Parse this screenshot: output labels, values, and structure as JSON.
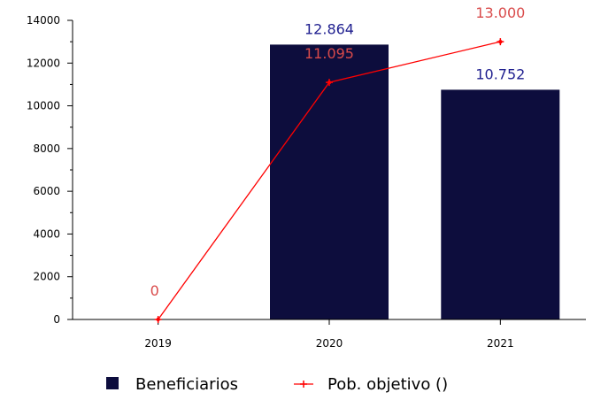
{
  "chart_data": {
    "type": "bar",
    "categories": [
      "2019",
      "2020",
      "2021"
    ],
    "series": [
      {
        "name": "Beneficiarios",
        "type": "bar",
        "values": [
          0,
          12864,
          10752
        ],
        "labels": [
          "",
          "12.864",
          "10.752"
        ],
        "color": "#0d0d3d",
        "label_color": "#1f1f8f"
      },
      {
        "name": "Pob. objetivo ()",
        "type": "line",
        "values": [
          0,
          11095,
          13000
        ],
        "labels": [
          "0",
          "11.095",
          "13.000"
        ],
        "color": "#ff0000",
        "label_color": "#d94a4a"
      }
    ],
    "ylim": [
      0,
      14000
    ],
    "yticks": [
      0,
      2000,
      4000,
      6000,
      8000,
      10000,
      12000,
      14000
    ],
    "ytick_labels": [
      "0",
      "2000",
      "4000",
      "6000",
      "8000",
      "10000",
      "12000",
      "14000"
    ],
    "grid": false,
    "legend_position": "bottom"
  }
}
